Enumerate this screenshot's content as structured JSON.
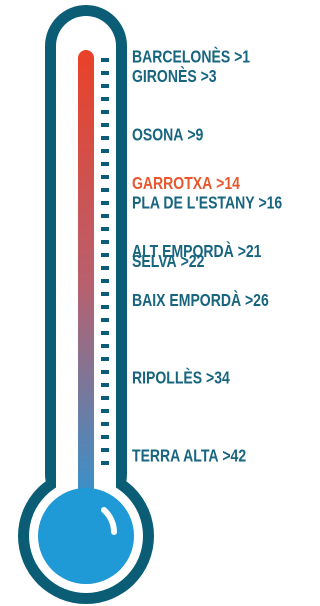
{
  "chart_data": {
    "type": "thermometer",
    "categories": [
      "BARCELONÈS",
      "GIRONÈS",
      "OSONA",
      "GARROTXA",
      "PLA DE L'ESTANY",
      "ALT EMPORDÀ",
      "SELVA",
      "BAIX EMPORDÀ",
      "RIPOLLÈS",
      "TERRA ALTA"
    ],
    "values": [
      1,
      3,
      9,
      14,
      16,
      21,
      22,
      26,
      34,
      42
    ],
    "value_labels": [
      ">1",
      ">3",
      ">9",
      ">14",
      ">16",
      ">21",
      ">22",
      ">26",
      ">34",
      ">42"
    ],
    "colors": [
      "#17657f",
      "#17657f",
      "#17657f",
      "#e8572e",
      "#17657f",
      "#17657f",
      "#17657f",
      "#17657f",
      "#17657f",
      "#17657f"
    ],
    "ylim": [
      1,
      42
    ]
  }
}
